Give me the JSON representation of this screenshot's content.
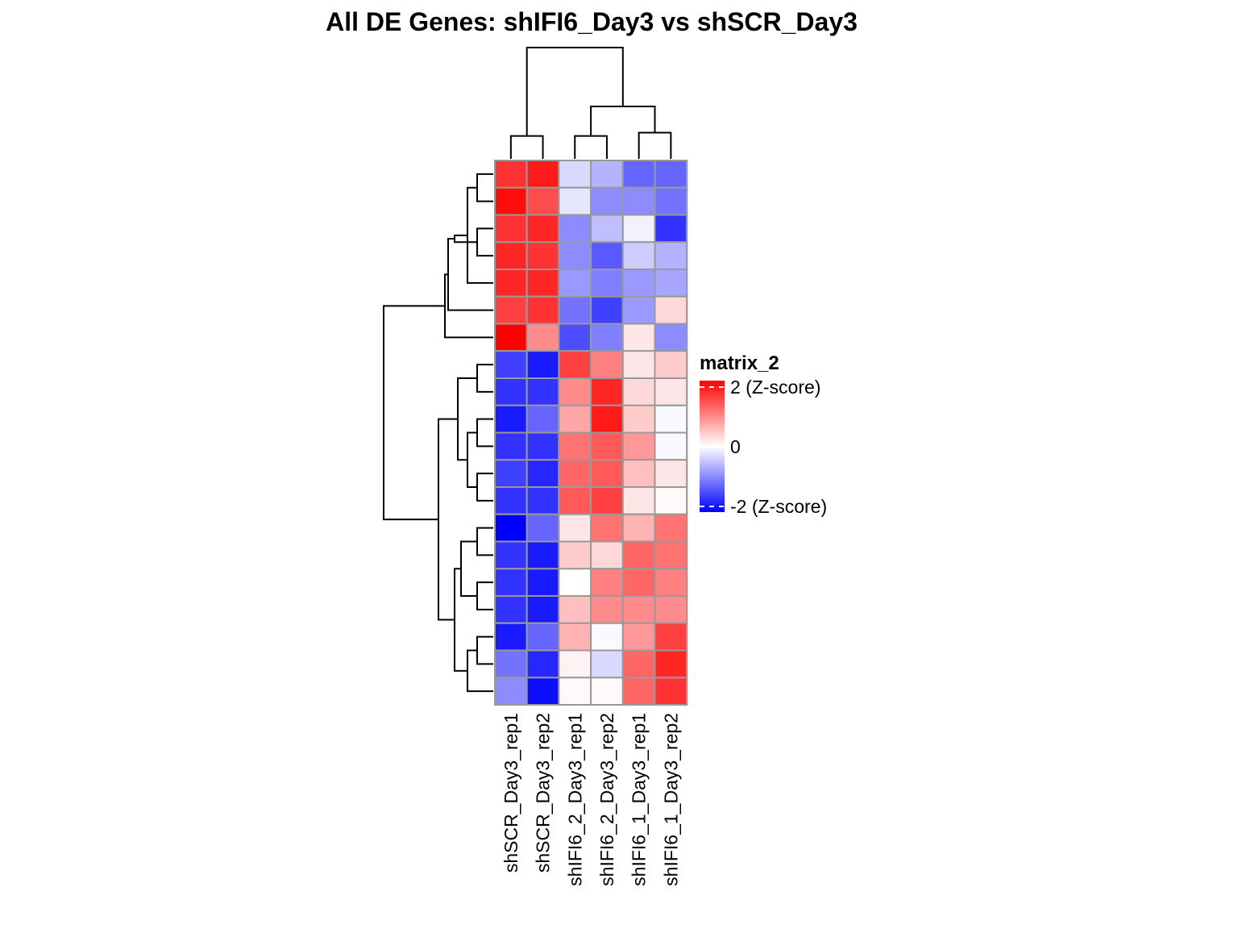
{
  "chart_data": {
    "type": "heatmap",
    "title": "All DE Genes: shIFI6_Day3  vs  shSCR_Day3",
    "columns": [
      "shSCR_Day3_rep1",
      "shSCR_Day3_rep2",
      "shIFI6_2_Day3_rep1",
      "shIFI6_2_Day3_rep2",
      "shIFI6_1_Day3_rep1",
      "shIFI6_1_Day3_rep2"
    ],
    "values": [
      [
        1.6,
        1.8,
        -0.3,
        -0.6,
        -1.2,
        -1.2
      ],
      [
        1.9,
        1.4,
        -0.2,
        -0.9,
        -0.9,
        -1.1
      ],
      [
        1.6,
        1.7,
        -0.9,
        -0.5,
        -0.1,
        -1.6
      ],
      [
        1.7,
        1.6,
        -0.9,
        -1.3,
        -0.4,
        -0.6
      ],
      [
        1.7,
        1.7,
        -0.8,
        -1.0,
        -0.8,
        -0.7
      ],
      [
        1.5,
        1.6,
        -1.1,
        -1.5,
        -0.8,
        0.3
      ],
      [
        2.0,
        0.9,
        -1.4,
        -1.0,
        0.2,
        -0.9
      ],
      [
        -1.5,
        -1.8,
        1.5,
        1.0,
        0.2,
        0.4
      ],
      [
        -1.6,
        -1.6,
        0.9,
        1.7,
        0.3,
        0.2
      ],
      [
        -1.8,
        -1.2,
        0.7,
        1.8,
        0.4,
        -0.05
      ],
      [
        -1.6,
        -1.6,
        1.1,
        1.3,
        0.8,
        -0.05
      ],
      [
        -1.5,
        -1.7,
        1.2,
        1.3,
        0.5,
        0.2
      ],
      [
        -1.6,
        -1.6,
        1.3,
        1.5,
        0.2,
        0.05
      ],
      [
        -2.0,
        -1.2,
        0.2,
        1.1,
        0.6,
        1.1
      ],
      [
        -1.6,
        -1.8,
        0.4,
        0.3,
        1.2,
        1.1
      ],
      [
        -1.6,
        -1.8,
        0.0,
        1.0,
        1.2,
        1.0
      ],
      [
        -1.6,
        -1.8,
        0.5,
        0.9,
        0.9,
        0.9
      ],
      [
        -1.8,
        -1.2,
        0.6,
        -0.05,
        0.8,
        1.5
      ],
      [
        -1.1,
        -1.7,
        0.1,
        -0.3,
        1.2,
        1.7
      ],
      [
        -0.9,
        -1.9,
        0.05,
        0.05,
        1.2,
        1.6
      ]
    ],
    "value_range": [
      -2,
      2
    ],
    "colorscale": {
      "low": "#0000ff",
      "mid": "#ffffff",
      "high": "#ff0000"
    },
    "cell_border_color": "#999999",
    "legend": {
      "title": "matrix_2",
      "ticks": [
        {
          "value": 2,
          "label": "2 (Z-score)"
        },
        {
          "value": 0,
          "label": "0"
        },
        {
          "value": -2,
          "label": "-2 (Z-score)"
        }
      ],
      "position": "right"
    },
    "row_dendrogram": [
      [
        0,
        1,
        0.5
      ],
      [
        2,
        3,
        0.5
      ],
      [
        20,
        4,
        0.8
      ],
      [
        21,
        22,
        1.2
      ],
      [
        23,
        5,
        1.4
      ],
      [
        24,
        6,
        1.5
      ],
      [
        7,
        8,
        0.5
      ],
      [
        9,
        10,
        0.5
      ],
      [
        11,
        12,
        0.5
      ],
      [
        27,
        28,
        0.8
      ],
      [
        26,
        29,
        1.1
      ],
      [
        13,
        14,
        0.5
      ],
      [
        15,
        16,
        0.5
      ],
      [
        31,
        32,
        1.0
      ],
      [
        17,
        18,
        0.5
      ],
      [
        34,
        19,
        0.8
      ],
      [
        33,
        35,
        1.2
      ],
      [
        30,
        36,
        1.7
      ],
      [
        25,
        37,
        3.4
      ]
    ],
    "col_dendrogram": [
      [
        0,
        1,
        0.7
      ],
      [
        2,
        3,
        0.7
      ],
      [
        4,
        5,
        0.8
      ],
      [
        7,
        8,
        1.6
      ],
      [
        6,
        9,
        3.4
      ]
    ]
  }
}
